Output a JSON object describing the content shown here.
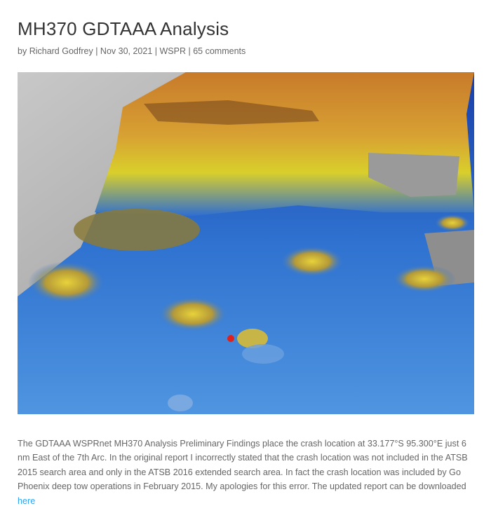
{
  "header": {
    "title": "MH370 GDTAAA Analysis"
  },
  "meta": {
    "by": "by",
    "author": "Richard Godfrey",
    "separator": "|",
    "date": "Nov 30, 2021",
    "category": "WSPR",
    "comments": "65 comments"
  },
  "body": {
    "text": "The GDTAAA WSPRnet MH370 Analysis Preliminary Findings place the crash location at 33.177°S 95.300°E just 6 nm East of the 7th Arc. In the original report I incorrectly stated that the crash location was not included in the ATSB 2015 search area and only in the ATSB 2016 extended search area. In fact the crash location was included by Go Phoenix deep tow operations in February 2015. My apologies for this error. The updated report can be downloaded",
    "link": "here"
  }
}
